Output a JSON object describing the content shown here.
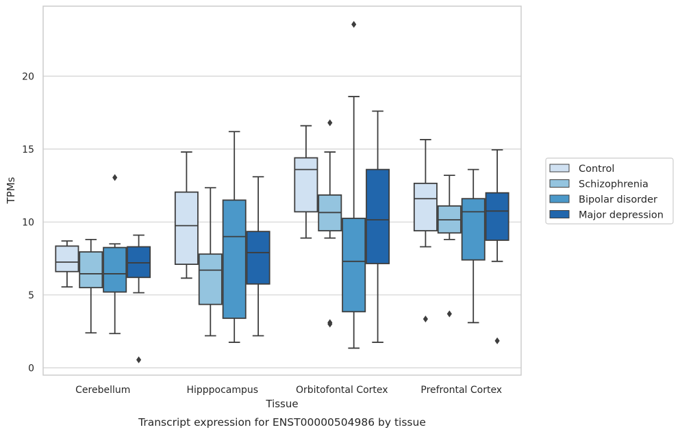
{
  "caption": "Transcript expression for ENST00000504986 by tissue",
  "chart_data": {
    "type": "box",
    "xlabel": "Tissue",
    "ylabel": "TPMs",
    "ylim": [
      -0.5,
      24.8
    ],
    "yticks": [
      0,
      5,
      10,
      15,
      20
    ],
    "grid": "horizontal",
    "legend_position": "right",
    "categories": [
      "Cerebellum",
      "Hipppocampus",
      "Orbitofontal Cortex",
      "Prefrontal Cortex"
    ],
    "series": [
      {
        "name": "Control",
        "color": "#d0e1f2",
        "boxes": [
          {
            "q1": 6.6,
            "median": 7.25,
            "q3": 8.35,
            "whisker_low": 5.55,
            "whisker_high": 8.7,
            "outliers": []
          },
          {
            "q1": 7.1,
            "median": 9.75,
            "q3": 12.05,
            "whisker_low": 6.15,
            "whisker_high": 14.8,
            "outliers": []
          },
          {
            "q1": 10.7,
            "median": 13.6,
            "q3": 14.4,
            "whisker_low": 8.9,
            "whisker_high": 16.6,
            "outliers": []
          },
          {
            "q1": 9.4,
            "median": 11.6,
            "q3": 12.65,
            "whisker_low": 8.3,
            "whisker_high": 15.65,
            "outliers": [
              3.35
            ]
          }
        ]
      },
      {
        "name": "Schizophrenia",
        "color": "#94c4df",
        "boxes": [
          {
            "q1": 5.5,
            "median": 6.45,
            "q3": 7.95,
            "whisker_low": 2.4,
            "whisker_high": 8.8,
            "outliers": []
          },
          {
            "q1": 4.35,
            "median": 6.7,
            "q3": 7.8,
            "whisker_low": 2.2,
            "whisker_high": 12.35,
            "outliers": []
          },
          {
            "q1": 9.4,
            "median": 10.65,
            "q3": 11.85,
            "whisker_low": 8.9,
            "whisker_high": 14.8,
            "outliers": [
              16.8,
              3.1,
              3.0
            ]
          },
          {
            "q1": 9.25,
            "median": 10.15,
            "q3": 11.1,
            "whisker_low": 8.8,
            "whisker_high": 13.2,
            "outliers": [
              3.7
            ]
          }
        ]
      },
      {
        "name": "Bipolar disorder",
        "color": "#4b98c9",
        "boxes": [
          {
            "q1": 5.2,
            "median": 6.45,
            "q3": 8.25,
            "whisker_low": 2.35,
            "whisker_high": 8.5,
            "outliers": [
              13.05
            ]
          },
          {
            "q1": 3.4,
            "median": 9.0,
            "q3": 11.5,
            "whisker_low": 1.75,
            "whisker_high": 16.2,
            "outliers": []
          },
          {
            "q1": 3.85,
            "median": 7.3,
            "q3": 10.25,
            "whisker_low": 1.35,
            "whisker_high": 18.6,
            "outliers": [
              23.55
            ]
          },
          {
            "q1": 7.4,
            "median": 10.7,
            "q3": 11.6,
            "whisker_low": 3.1,
            "whisker_high": 13.6,
            "outliers": []
          }
        ]
      },
      {
        "name": "Major depression",
        "color": "#2166ac",
        "boxes": [
          {
            "q1": 6.2,
            "median": 7.2,
            "q3": 8.3,
            "whisker_low": 5.15,
            "whisker_high": 9.1,
            "outliers": [
              0.55
            ]
          },
          {
            "q1": 5.75,
            "median": 7.9,
            "q3": 9.35,
            "whisker_low": 2.2,
            "whisker_high": 13.1,
            "outliers": []
          },
          {
            "q1": 7.15,
            "median": 10.15,
            "q3": 13.6,
            "whisker_low": 1.75,
            "whisker_high": 17.6,
            "outliers": []
          },
          {
            "q1": 8.75,
            "median": 10.75,
            "q3": 12.0,
            "whisker_low": 7.3,
            "whisker_high": 14.95,
            "outliers": [
              1.85
            ]
          }
        ]
      }
    ]
  }
}
